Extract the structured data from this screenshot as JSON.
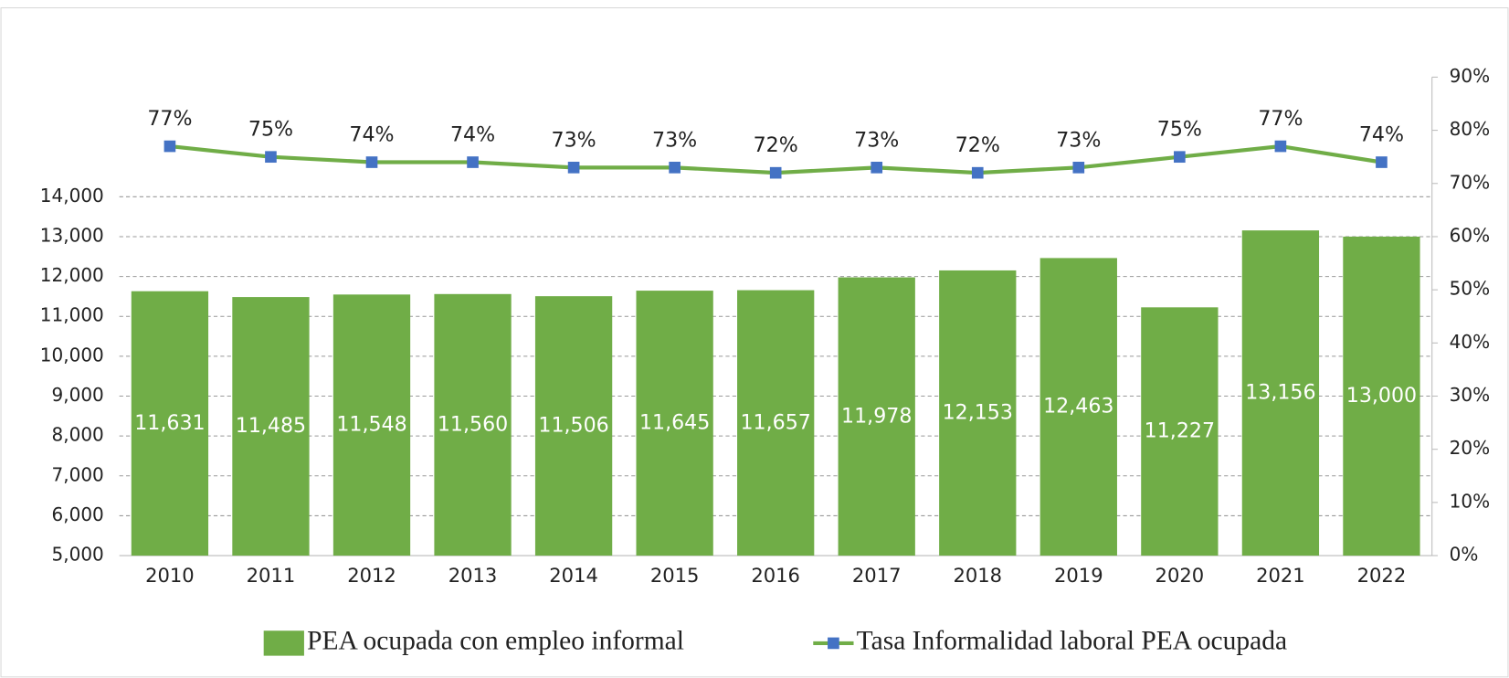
{
  "chart_data": {
    "type": "bar_line",
    "categories": [
      "2010",
      "2011",
      "2012",
      "2013",
      "2014",
      "2015",
      "2016",
      "2017",
      "2018",
      "2019",
      "2020",
      "2021",
      "2022"
    ],
    "series": [
      {
        "name": "PEA ocupada con empleo informal",
        "type": "bar",
        "color": "#70ad47",
        "values": [
          11631,
          11485,
          11548,
          11560,
          11506,
          11645,
          11657,
          11978,
          12153,
          12463,
          11227,
          13156,
          13000
        ],
        "value_labels": [
          "11,631",
          "11,485",
          "11,548",
          "11,560",
          "11,506",
          "11,645",
          "11,657",
          "11,978",
          "12,153",
          "12,463",
          "11,227",
          "13,156",
          "13,000"
        ]
      },
      {
        "name": "Tasa Informalidad laboral PEA ocupada",
        "type": "line",
        "axis": "y2",
        "color": "#70ad47",
        "marker_color": "#4472c4",
        "values": [
          77,
          75,
          74,
          74,
          73,
          73,
          72,
          73,
          72,
          73,
          75,
          77,
          74
        ],
        "value_labels": [
          "77%",
          "75%",
          "74%",
          "74%",
          "73%",
          "73%",
          "72%",
          "73%",
          "72%",
          "73%",
          "75%",
          "77%",
          "74%"
        ]
      }
    ],
    "ylim": [
      5000,
      17000
    ],
    "yticks": [
      {
        "value": 5000,
        "label": "5,000"
      },
      {
        "value": 6000,
        "label": "6,000"
      },
      {
        "value": 7000,
        "label": "7,000"
      },
      {
        "value": 8000,
        "label": "8,000"
      },
      {
        "value": 9000,
        "label": "9,000"
      },
      {
        "value": 10000,
        "label": "10,000"
      },
      {
        "value": 11000,
        "label": "11,000"
      },
      {
        "value": 12000,
        "label": "12,000"
      },
      {
        "value": 13000,
        "label": "13,000"
      },
      {
        "value": 14000,
        "label": "14,000"
      }
    ],
    "y2lim": [
      0,
      90
    ],
    "y2ticks": [
      {
        "value": 0,
        "label": "0%"
      },
      {
        "value": 10,
        "label": "10%"
      },
      {
        "value": 20,
        "label": "20%"
      },
      {
        "value": 30,
        "label": "30%"
      },
      {
        "value": 40,
        "label": "40%"
      },
      {
        "value": 50,
        "label": "50%"
      },
      {
        "value": 60,
        "label": "60%"
      },
      {
        "value": 70,
        "label": "70%"
      },
      {
        "value": 80,
        "label": "80%"
      },
      {
        "value": 90,
        "label": "90%"
      }
    ],
    "grid": true,
    "legend": "bottom"
  }
}
